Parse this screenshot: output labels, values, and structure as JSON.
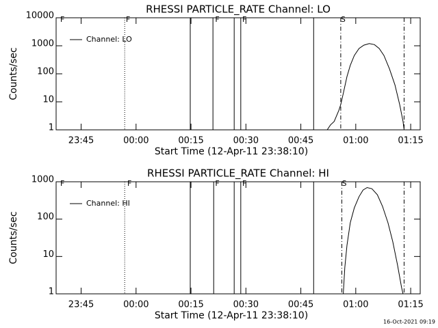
{
  "footer": "16-Oct-2021 09:19",
  "chart_data": [
    {
      "type": "line",
      "title": "RHESSI PARTICLE_RATE Channel: LO",
      "xlabel": "Start Time (12-Apr-11 23:38:10)",
      "ylabel": "Counts/sec",
      "log_y": true,
      "xlim": [
        1418.17,
        1517.6
      ],
      "ylim": [
        1,
        10000
      ],
      "xticks": [
        {
          "value": 1425,
          "label": "23:45"
        },
        {
          "value": 1440,
          "label": "00:00"
        },
        {
          "value": 1455,
          "label": "00:15"
        },
        {
          "value": 1470,
          "label": "00:30"
        },
        {
          "value": 1485,
          "label": "00:45"
        },
        {
          "value": 1500,
          "label": "01:00"
        },
        {
          "value": 1515,
          "label": "01:15"
        }
      ],
      "yticks": [
        1,
        10,
        100,
        1000,
        10000
      ],
      "series": [
        {
          "name": "Channel: LO",
          "color": "#000000",
          "x": [
            1492.2,
            1493.1,
            1494.1,
            1495.4,
            1495.9,
            1496.6,
            1497.6,
            1498.5,
            1499.6,
            1500.9,
            1502.2,
            1503.7,
            1505.1,
            1506.4,
            1507.7,
            1509.2,
            1510.7,
            1512.0,
            1512.9,
            1513.2
          ],
          "values": [
            1,
            1.5,
            2,
            5,
            8,
            20,
            80,
            200,
            450,
            800,
            1050,
            1200,
            1100,
            800,
            450,
            150,
            40,
            8,
            2,
            1
          ]
        }
      ],
      "flags": [
        {
          "x": 1436.9,
          "style": "dotted"
        },
        {
          "x": 1454.8,
          "style": "solid"
        },
        {
          "x": 1461.0,
          "style": "solid"
        },
        {
          "x": 1466.8,
          "style": "solid"
        },
        {
          "x": 1468.6,
          "style": "solid"
        },
        {
          "x": 1488.5,
          "style": "solid"
        },
        {
          "x": 1495.9,
          "style": "dashdot"
        },
        {
          "x": 1513.2,
          "style": "dashdot"
        }
      ],
      "flag_labels": [
        {
          "x": 1419.3,
          "text": "F"
        },
        {
          "x": 1437.2,
          "text": "F"
        },
        {
          "x": 1461.6,
          "text": "F"
        },
        {
          "x": 1469.0,
          "text": "F"
        },
        {
          "x": 1495.9,
          "text": "S"
        }
      ]
    },
    {
      "type": "line",
      "title": "RHESSI PARTICLE_RATE Channel: HI",
      "xlabel": "Start Time (12-Apr-11 23:38:10)",
      "ylabel": "Counts/sec",
      "log_y": true,
      "xlim": [
        1418.17,
        1517.6
      ],
      "ylim": [
        1,
        1000
      ],
      "xticks": [
        {
          "value": 1425,
          "label": "23:45"
        },
        {
          "value": 1440,
          "label": "00:00"
        },
        {
          "value": 1455,
          "label": "00:15"
        },
        {
          "value": 1470,
          "label": "00:30"
        },
        {
          "value": 1485,
          "label": "00:45"
        },
        {
          "value": 1500,
          "label": "01:00"
        },
        {
          "value": 1515,
          "label": "01:15"
        }
      ],
      "yticks": [
        1,
        10,
        100,
        1000
      ],
      "series": [
        {
          "name": "Channel: HI",
          "color": "#000000",
          "x": [
            1496.6,
            1497.0,
            1497.6,
            1498.5,
            1499.6,
            1500.9,
            1502.0,
            1503.1,
            1504.4,
            1505.9,
            1507.3,
            1508.8,
            1510.1,
            1511.4,
            1512.5,
            1512.9
          ],
          "values": [
            1,
            5,
            20,
            80,
            200,
            400,
            600,
            700,
            650,
            450,
            220,
            80,
            25,
            6,
            1.5,
            1
          ]
        }
      ],
      "flags": [
        {
          "x": 1436.9,
          "style": "dotted"
        },
        {
          "x": 1454.8,
          "style": "solid"
        },
        {
          "x": 1461.2,
          "style": "solid"
        },
        {
          "x": 1466.8,
          "style": "solid"
        },
        {
          "x": 1468.6,
          "style": "solid"
        },
        {
          "x": 1488.5,
          "style": "solid"
        },
        {
          "x": 1496.2,
          "style": "dashdot"
        },
        {
          "x": 1513.2,
          "style": "dashdot"
        }
      ],
      "flag_labels": [
        {
          "x": 1419.3,
          "text": "F"
        },
        {
          "x": 1437.6,
          "text": "F"
        },
        {
          "x": 1461.6,
          "text": "F"
        },
        {
          "x": 1469.0,
          "text": "F"
        },
        {
          "x": 1496.2,
          "text": "S"
        }
      ]
    }
  ]
}
